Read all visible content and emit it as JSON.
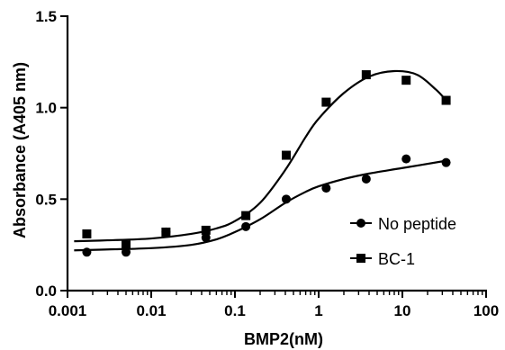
{
  "chart_data": {
    "type": "scatter",
    "title": "",
    "xlabel": "BMP2(nM)",
    "ylabel": "Absorbance (A405 nm)",
    "x_scale": "log",
    "xlim": [
      0.001,
      100
    ],
    "ylim": [
      0.0,
      1.5
    ],
    "x_ticks": [
      0.001,
      0.01,
      0.1,
      1,
      10,
      100
    ],
    "x_tick_labels": [
      "0.001",
      "0.01",
      "0.1",
      "1",
      "10",
      "100"
    ],
    "y_ticks": [
      0.0,
      0.5,
      1.0,
      1.5
    ],
    "y_tick_labels": [
      "0.0",
      "0.5",
      "1.0",
      "1.5"
    ],
    "grid": false,
    "legend_position": "bottom-right",
    "series": [
      {
        "name": "No peptide",
        "marker": "circle",
        "x": [
          0.0017,
          0.005,
          0.015,
          0.045,
          0.135,
          0.41,
          1.23,
          3.7,
          11.1,
          33.3
        ],
        "y": [
          0.21,
          0.21,
          0.32,
          0.29,
          0.35,
          0.5,
          0.56,
          0.61,
          0.72,
          0.7
        ],
        "fit": [
          [
            0.0012,
            0.22
          ],
          [
            0.003,
            0.225
          ],
          [
            0.01,
            0.232
          ],
          [
            0.03,
            0.25
          ],
          [
            0.06,
            0.28
          ],
          [
            0.1,
            0.32
          ],
          [
            0.2,
            0.39
          ],
          [
            0.4,
            0.48
          ],
          [
            0.7,
            0.54
          ],
          [
            1.0,
            0.57
          ],
          [
            2.0,
            0.61
          ],
          [
            4.0,
            0.64
          ],
          [
            10,
            0.67
          ],
          [
            33.3,
            0.71
          ]
        ]
      },
      {
        "name": "BC-1",
        "marker": "square",
        "x": [
          0.0017,
          0.005,
          0.015,
          0.045,
          0.135,
          0.41,
          1.23,
          3.7,
          11.1,
          33.3
        ],
        "y": [
          0.31,
          0.25,
          0.32,
          0.33,
          0.41,
          0.74,
          1.03,
          1.18,
          1.15,
          1.04
        ],
        "fit": [
          [
            0.0012,
            0.27
          ],
          [
            0.003,
            0.275
          ],
          [
            0.01,
            0.285
          ],
          [
            0.03,
            0.31
          ],
          [
            0.06,
            0.34
          ],
          [
            0.1,
            0.38
          ],
          [
            0.2,
            0.48
          ],
          [
            0.4,
            0.66
          ],
          [
            0.7,
            0.84
          ],
          [
            1.0,
            0.94
          ],
          [
            2.0,
            1.08
          ],
          [
            4.0,
            1.17
          ],
          [
            8.0,
            1.2
          ],
          [
            15,
            1.18
          ],
          [
            25,
            1.1
          ],
          [
            33.3,
            1.04
          ]
        ]
      }
    ]
  }
}
